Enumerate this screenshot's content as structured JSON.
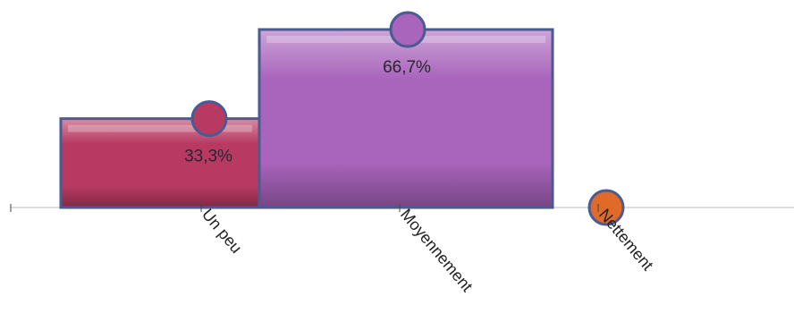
{
  "chart_data": {
    "type": "bar",
    "categories": [
      "Un peu",
      "Moyennement",
      "Nettement"
    ],
    "values": [
      33.3,
      66.7,
      0
    ],
    "value_labels": [
      "33,3%",
      "66,7%",
      ""
    ],
    "colors": [
      "#b83a63",
      "#a964bc",
      "#e06a28"
    ],
    "ylim": [
      0,
      66.7
    ],
    "title": "",
    "xlabel": "",
    "ylabel": "",
    "grid": false
  }
}
